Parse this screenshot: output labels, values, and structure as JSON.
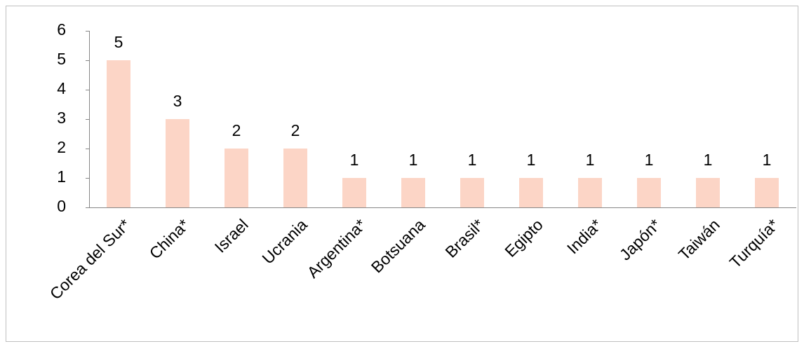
{
  "chart_data": {
    "type": "bar",
    "categories": [
      "Corea del Sur*",
      "China*",
      "Israel",
      "Ucrania",
      "Argentina*",
      "Botsuana",
      "Brasil*",
      "Egipto",
      "India*",
      "Japón*",
      "Taiwán",
      "Turquía*"
    ],
    "values": [
      5,
      3,
      2,
      2,
      1,
      1,
      1,
      1,
      1,
      1,
      1,
      1
    ],
    "color": "#fcd5c6",
    "ylim": [
      0,
      6
    ],
    "yticks": [
      0,
      1,
      2,
      3,
      4,
      5,
      6
    ],
    "grid": false
  }
}
